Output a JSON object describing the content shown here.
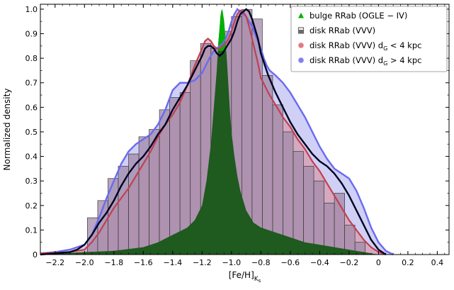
{
  "chart_data": {
    "type": "bar",
    "xlabel_main": "[Fe/H]",
    "xlabel_sub": "K",
    "xlabel_subsub": "s",
    "ylabel": "Normalized density",
    "xlim": [
      -2.3,
      0.48
    ],
    "ylim": [
      0,
      1.02
    ],
    "x_ticks": [
      -2.2,
      -2.0,
      -1.8,
      -1.6,
      -1.4,
      -1.2,
      -1.0,
      -0.8,
      -0.6,
      -0.4,
      -0.2,
      0,
      0.2,
      0.4
    ],
    "x_tick_labels": [
      "−2.2",
      "−2.0",
      "−1.8",
      "−1.6",
      "−1.4",
      "−1.2",
      "−1.0",
      "−0.8",
      "−0.6",
      "−0.4",
      "−0.2",
      "0",
      "0.2",
      "0.4"
    ],
    "y_ticks": [
      0,
      0.1,
      0.2,
      0.3,
      0.4,
      0.5,
      0.6,
      0.7,
      0.8,
      0.9,
      1.0
    ],
    "y_tick_labels": [
      "0",
      "0.1",
      "0.2",
      "0.3",
      "0.4",
      "0.5",
      "0.6",
      "0.7",
      "0.8",
      "0.9",
      "1.0"
    ],
    "legend_position": "top-right",
    "legend": [
      {
        "marker": "triangle",
        "color": "#00b000",
        "text": "bulge RRab (OGLE − IV)"
      },
      {
        "marker": "bar",
        "color": "#6a6a6a",
        "text": "disk RRab (VVV)"
      },
      {
        "marker": "dot",
        "color": "#e06070",
        "text": "disk RRab (VVV) d",
        "sub": "G",
        "rest": " < 4 kpc"
      },
      {
        "marker": "dot",
        "color": "#6a6af0",
        "text": "disk RRab (VVV) d",
        "sub": "G",
        "rest": " > 4 kpc"
      }
    ],
    "colors": {
      "bulge": "#1f5a1f",
      "bulge_peak": "#00b000",
      "histogram_fill": "#a08aa8",
      "histogram_edge": "#3a3a3a",
      "near_fill": "#d98a95",
      "near_line": "#c24050",
      "far_fill": "#c8c8f4",
      "far_line": "#6a6af0",
      "total_line": "#000020"
    },
    "histogram": {
      "bin_width": 0.07,
      "bin_left_edges": [
        -1.98,
        -1.91,
        -1.84,
        -1.77,
        -1.7,
        -1.63,
        -1.56,
        -1.49,
        -1.42,
        -1.35,
        -1.28,
        -1.21,
        -1.14,
        -1.07,
        -1.0,
        -0.93,
        -0.86,
        -0.79,
        -0.72,
        -0.65,
        -0.58,
        -0.51,
        -0.44,
        -0.37,
        -0.3,
        -0.23,
        -0.16
      ],
      "values": [
        0.15,
        0.22,
        0.31,
        0.36,
        0.41,
        0.48,
        0.51,
        0.59,
        0.64,
        0.66,
        0.79,
        0.86,
        0.84,
        0.91,
        0.97,
        0.999,
        0.96,
        0.73,
        0.61,
        0.5,
        0.42,
        0.36,
        0.3,
        0.21,
        0.25,
        0.12,
        0.05
      ]
    },
    "series": [
      {
        "name": "bulge RRab (OGLE − IV)",
        "style": "filled",
        "x": [
          -2.3,
          -2.0,
          -1.8,
          -1.6,
          -1.5,
          -1.4,
          -1.3,
          -1.25,
          -1.2,
          -1.17,
          -1.14,
          -1.12,
          -1.1,
          -1.09,
          -1.08,
          -1.075,
          -1.07,
          -1.065,
          -1.06,
          -1.05,
          -1.04,
          -1.03,
          -1.02,
          -1.01,
          -1.0,
          -0.98,
          -0.96,
          -0.94,
          -0.92,
          -0.9,
          -0.85,
          -0.8,
          -0.7,
          -0.6,
          -0.5,
          -0.4,
          -0.3,
          -0.2,
          -0.1,
          0.0
        ],
        "y": [
          0.0,
          0.01,
          0.015,
          0.03,
          0.05,
          0.08,
          0.11,
          0.14,
          0.2,
          0.3,
          0.45,
          0.6,
          0.75,
          0.86,
          0.93,
          0.97,
          0.99,
          1.0,
          0.99,
          0.95,
          0.87,
          0.78,
          0.68,
          0.58,
          0.5,
          0.4,
          0.32,
          0.26,
          0.22,
          0.18,
          0.13,
          0.11,
          0.09,
          0.07,
          0.05,
          0.04,
          0.03,
          0.02,
          0.01,
          0.0
        ]
      },
      {
        "name": "disk RRab (VVV) d_G < 4 kpc",
        "style": "filled-line",
        "x": [
          -2.3,
          -2.1,
          -2.0,
          -1.95,
          -1.9,
          -1.85,
          -1.8,
          -1.75,
          -1.7,
          -1.65,
          -1.6,
          -1.55,
          -1.5,
          -1.45,
          -1.4,
          -1.35,
          -1.3,
          -1.25,
          -1.2,
          -1.18,
          -1.16,
          -1.14,
          -1.12,
          -1.1,
          -1.08,
          -1.06,
          -1.04,
          -1.02,
          -1.0,
          -0.98,
          -0.96,
          -0.94,
          -0.92,
          -0.9,
          -0.88,
          -0.86,
          -0.84,
          -0.82,
          -0.8,
          -0.75,
          -0.7,
          -0.65,
          -0.6,
          -0.55,
          -0.5,
          -0.45,
          -0.4,
          -0.35,
          -0.3,
          -0.25,
          -0.2,
          -0.15,
          -0.1,
          -0.05,
          0.0,
          0.05
        ],
        "y": [
          0.005,
          0.01,
          0.02,
          0.05,
          0.09,
          0.14,
          0.19,
          0.23,
          0.27,
          0.32,
          0.37,
          0.42,
          0.48,
          0.53,
          0.57,
          0.62,
          0.69,
          0.77,
          0.84,
          0.87,
          0.88,
          0.87,
          0.85,
          0.84,
          0.84,
          0.85,
          0.86,
          0.88,
          0.91,
          0.95,
          0.98,
          0.995,
          0.99,
          0.97,
          0.93,
          0.88,
          0.83,
          0.78,
          0.72,
          0.66,
          0.61,
          0.56,
          0.52,
          0.47,
          0.43,
          0.38,
          0.34,
          0.29,
          0.24,
          0.19,
          0.14,
          0.1,
          0.06,
          0.03,
          0.01,
          0.0
        ]
      },
      {
        "name": "disk RRab (VVV) d_G > 4 kpc",
        "style": "filled-line",
        "x": [
          -2.3,
          -2.2,
          -2.1,
          -2.0,
          -1.95,
          -1.9,
          -1.85,
          -1.8,
          -1.75,
          -1.7,
          -1.65,
          -1.6,
          -1.55,
          -1.5,
          -1.45,
          -1.4,
          -1.35,
          -1.3,
          -1.25,
          -1.2,
          -1.15,
          -1.12,
          -1.1,
          -1.08,
          -1.06,
          -1.04,
          -1.02,
          -1.0,
          -0.98,
          -0.96,
          -0.94,
          -0.92,
          -0.9,
          -0.88,
          -0.86,
          -0.84,
          -0.82,
          -0.8,
          -0.78,
          -0.76,
          -0.74,
          -0.72,
          -0.7,
          -0.65,
          -0.6,
          -0.55,
          -0.5,
          -0.45,
          -0.4,
          -0.35,
          -0.3,
          -0.25,
          -0.2,
          -0.15,
          -0.1,
          -0.05,
          0.0,
          0.05,
          0.1
        ],
        "y": [
          0.005,
          0.01,
          0.02,
          0.04,
          0.08,
          0.15,
          0.23,
          0.3,
          0.37,
          0.42,
          0.45,
          0.47,
          0.49,
          0.53,
          0.59,
          0.67,
          0.7,
          0.7,
          0.71,
          0.74,
          0.8,
          0.83,
          0.84,
          0.85,
          0.86,
          0.88,
          0.91,
          0.95,
          0.98,
          1.0,
          0.99,
          0.98,
          0.97,
          0.95,
          0.93,
          0.9,
          0.87,
          0.84,
          0.8,
          0.77,
          0.75,
          0.74,
          0.73,
          0.7,
          0.66,
          0.61,
          0.56,
          0.5,
          0.44,
          0.39,
          0.35,
          0.33,
          0.31,
          0.26,
          0.19,
          0.11,
          0.05,
          0.015,
          0.0
        ]
      },
      {
        "name": "disk RRab (VVV)",
        "style": "line",
        "x": [
          -2.3,
          -2.2,
          -2.1,
          -2.05,
          -2.0,
          -1.95,
          -1.9,
          -1.85,
          -1.8,
          -1.75,
          -1.7,
          -1.65,
          -1.6,
          -1.55,
          -1.5,
          -1.45,
          -1.4,
          -1.35,
          -1.3,
          -1.25,
          -1.2,
          -1.18,
          -1.16,
          -1.14,
          -1.12,
          -1.1,
          -1.08,
          -1.06,
          -1.04,
          -1.02,
          -1.0,
          -0.98,
          -0.96,
          -0.94,
          -0.92,
          -0.9,
          -0.88,
          -0.86,
          -0.84,
          -0.82,
          -0.8,
          -0.75,
          -0.7,
          -0.65,
          -0.6,
          -0.55,
          -0.5,
          -0.45,
          -0.4,
          -0.35,
          -0.3,
          -0.25,
          -0.2,
          -0.15,
          -0.1,
          -0.05,
          0.0,
          0.05
        ],
        "y": [
          0.0,
          0.005,
          0.01,
          0.02,
          0.04,
          0.08,
          0.13,
          0.17,
          0.22,
          0.28,
          0.33,
          0.37,
          0.4,
          0.44,
          0.49,
          0.53,
          0.59,
          0.64,
          0.69,
          0.75,
          0.81,
          0.84,
          0.85,
          0.85,
          0.84,
          0.82,
          0.81,
          0.82,
          0.84,
          0.86,
          0.88,
          0.91,
          0.95,
          0.98,
          0.99,
          1.0,
          0.99,
          0.96,
          0.92,
          0.88,
          0.82,
          0.73,
          0.66,
          0.6,
          0.54,
          0.49,
          0.45,
          0.41,
          0.38,
          0.36,
          0.33,
          0.29,
          0.24,
          0.18,
          0.12,
          0.06,
          0.02,
          0.0
        ]
      }
    ]
  }
}
